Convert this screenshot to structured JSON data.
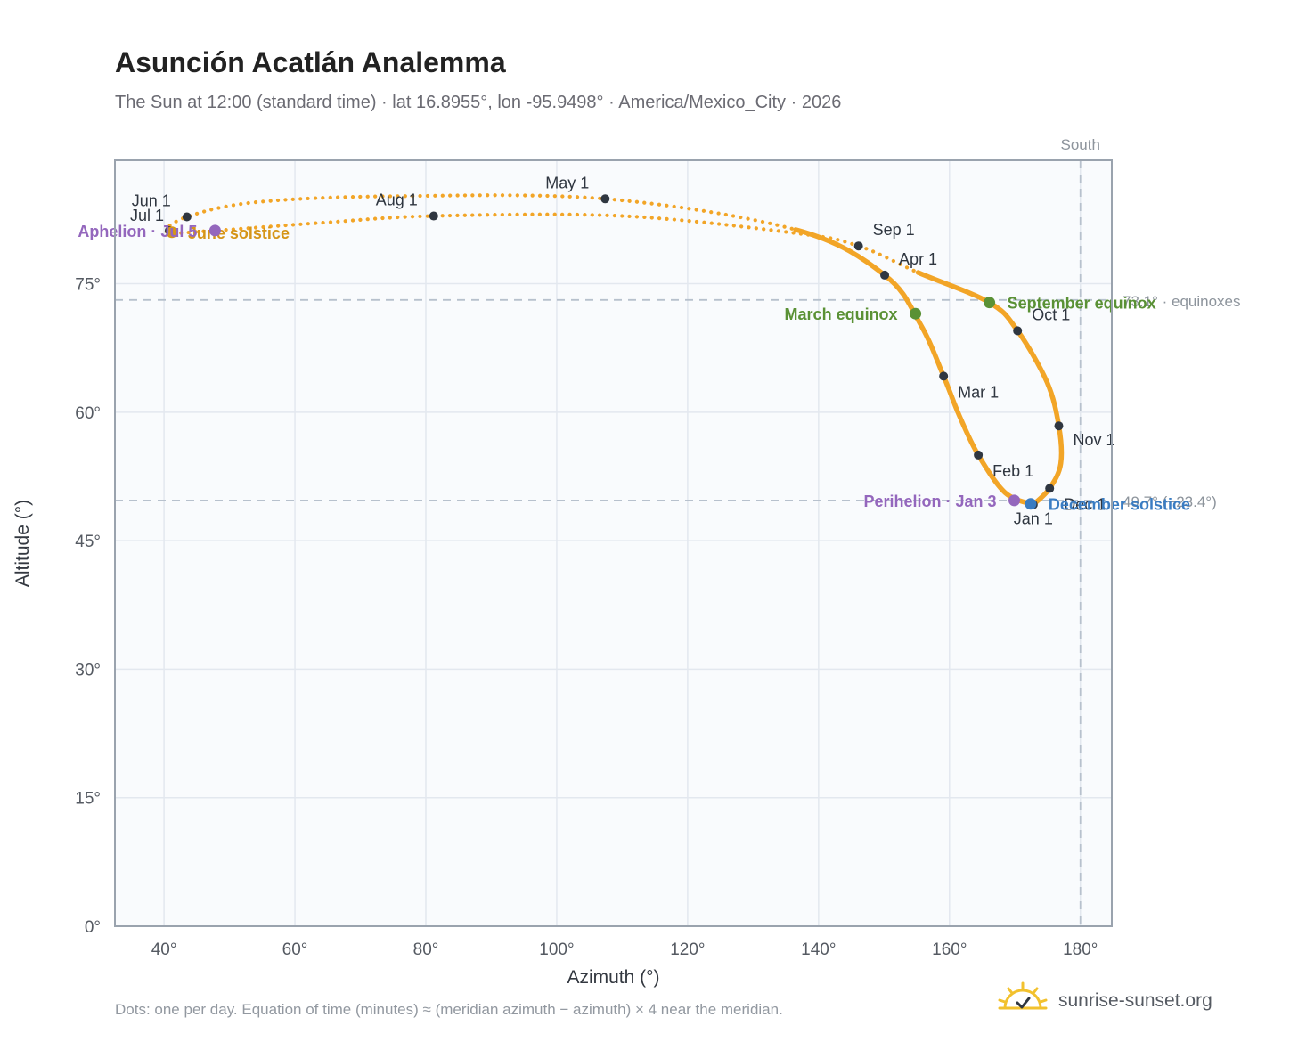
{
  "header": {
    "title": "Asunción Acatlán Analemma",
    "subtitle": "The Sun at 12:00 (standard time) · lat 16.8955°, lon -95.9498° · America/Mexico_City · 2026"
  },
  "footer": {
    "note": "Dots: one per day. Equation of time (minutes) ≈ (meridian azimuth − azimuth) × 4 near the meridian.",
    "brand": "sunrise-sunset.org",
    "brand_icon": "sun-icon"
  },
  "chart_data": {
    "type": "scatter",
    "xlabel": "Azimuth (°)",
    "ylabel": "Altitude (°)",
    "xlim": [
      32.5,
      184.8
    ],
    "ylim": [
      0,
      89.4
    ],
    "x_ticks": [
      40,
      60,
      80,
      100,
      120,
      140,
      160,
      180
    ],
    "y_ticks": [
      0,
      15,
      30,
      45,
      60,
      75
    ],
    "tick_suffix": "°",
    "grid": true,
    "meridian": {
      "azimuth": 180,
      "label": "South"
    },
    "reference_lines": [
      {
        "altitude": 73.1,
        "label": "73.1° · equinoxes"
      },
      {
        "altitude": 49.7,
        "label": "49.7° (−23.4°)"
      }
    ],
    "colors": {
      "path": "#f2a527",
      "month_marker": "#2f3640",
      "equinox": "#5a9135",
      "december_solstice": "#3a7cc2",
      "june_solstice": "#d59518",
      "apsis": "#9467bd",
      "reference_line": "#b7c1cd",
      "plot_bg": "#f9fbfd",
      "frame": "#9aa3ae"
    },
    "segments": [
      {
        "name": "",
        "style": "solid",
        "from": "Jan 1",
        "to": "Apr 15"
      },
      {
        "name": "",
        "style": "dotted",
        "from": "Apr 15",
        "to": "Aug 31"
      },
      {
        "name": "",
        "style": "solid",
        "from": "Aug 31",
        "to": "Dec 31"
      }
    ],
    "path_anchors": [
      {
        "x": 172.8,
        "y": 49.2
      },
      {
        "x": 168.5,
        "y": 50.6
      },
      {
        "x": 164.4,
        "y": 55.0
      },
      {
        "x": 161.5,
        "y": 59.6
      },
      {
        "x": 159.1,
        "y": 64.2
      },
      {
        "x": 155.6,
        "y": 70.2
      },
      {
        "x": 150.1,
        "y": 76.0
      },
      {
        "x": 136.5,
        "y": 81.3
      },
      {
        "x": 107.4,
        "y": 84.9
      },
      {
        "x": 75.0,
        "y": 85.2
      },
      {
        "x": 54.0,
        "y": 84.5
      },
      {
        "x": 43.5,
        "y": 82.8
      },
      {
        "x": 40.5,
        "y": 81.0
      },
      {
        "x": 47.8,
        "y": 81.2
      },
      {
        "x": 64.0,
        "y": 82.1
      },
      {
        "x": 81.2,
        "y": 82.9
      },
      {
        "x": 110.0,
        "y": 82.9
      },
      {
        "x": 136.5,
        "y": 80.9
      },
      {
        "x": 146.1,
        "y": 79.4
      },
      {
        "x": 155.2,
        "y": 76.3
      },
      {
        "x": 166.1,
        "y": 72.8
      },
      {
        "x": 170.4,
        "y": 69.5
      },
      {
        "x": 174.9,
        "y": 63.5
      },
      {
        "x": 176.7,
        "y": 58.4
      },
      {
        "x": 177.0,
        "y": 54.0
      },
      {
        "x": 175.3,
        "y": 51.1
      },
      {
        "x": 172.8,
        "y": 49.2
      }
    ],
    "month_markers": [
      {
        "label": "Jan 1",
        "x": 172.8,
        "y": 49.2,
        "dx": 0,
        "dy": 22,
        "anchor": "middle"
      },
      {
        "label": "Feb 1",
        "x": 164.4,
        "y": 55.0,
        "dx": 16,
        "dy": 24,
        "anchor": "start"
      },
      {
        "label": "Mar 1",
        "x": 159.1,
        "y": 64.2,
        "dx": 16,
        "dy": 24,
        "anchor": "start"
      },
      {
        "label": "Apr 1",
        "x": 150.1,
        "y": 76.0,
        "dx": 16,
        "dy": -12,
        "anchor": "start"
      },
      {
        "label": "May 1",
        "x": 107.4,
        "y": 84.9,
        "dx": -18,
        "dy": -12,
        "anchor": "end"
      },
      {
        "label": "Jun 1",
        "x": 43.5,
        "y": 82.8,
        "dx": -18,
        "dy": -12,
        "anchor": "end"
      },
      {
        "label": "Jul 1",
        "x": 40.8,
        "y": 81.2,
        "dx": -6,
        "dy": -11,
        "anchor": "end"
      },
      {
        "label": "Aug 1",
        "x": 81.2,
        "y": 82.9,
        "dx": -18,
        "dy": -12,
        "anchor": "end"
      },
      {
        "label": "Sep 1",
        "x": 146.1,
        "y": 79.4,
        "dx": 16,
        "dy": -12,
        "anchor": "start"
      },
      {
        "label": "Oct 1",
        "x": 170.4,
        "y": 69.5,
        "dx": 16,
        "dy": -12,
        "anchor": "start"
      },
      {
        "label": "Nov 1",
        "x": 176.7,
        "y": 58.4,
        "dx": 16,
        "dy": 22,
        "anchor": "start"
      },
      {
        "label": "Dec 1",
        "x": 175.3,
        "y": 51.1,
        "dx": 16,
        "dy": 24,
        "anchor": "start"
      }
    ],
    "events": [
      {
        "label": "March equinox",
        "x": 154.8,
        "y": 71.5,
        "color_key": "equinox",
        "dx": -20,
        "dy": 7,
        "anchor": "end"
      },
      {
        "label": "September equinox",
        "x": 166.1,
        "y": 72.8,
        "color_key": "equinox",
        "dx": 20,
        "dy": 7,
        "anchor": "start"
      },
      {
        "label": "December solstice",
        "x": 172.4,
        "y": 49.3,
        "color_key": "december_solstice",
        "dx": 20,
        "dy": 7,
        "anchor": "start"
      },
      {
        "label": "June solstice",
        "x": 41.2,
        "y": 81.0,
        "color_key": "june_solstice",
        "dx": 18,
        "dy": 7,
        "anchor": "start"
      },
      {
        "label": "Perihelion · Jan 3",
        "x": 169.9,
        "y": 49.7,
        "color_key": "apsis",
        "dx": -20,
        "dy": 7,
        "anchor": "end"
      },
      {
        "label": "Aphelion · Jul 5",
        "x": 47.8,
        "y": 81.2,
        "color_key": "apsis",
        "dx": -20,
        "dy": 7,
        "anchor": "end"
      }
    ]
  }
}
